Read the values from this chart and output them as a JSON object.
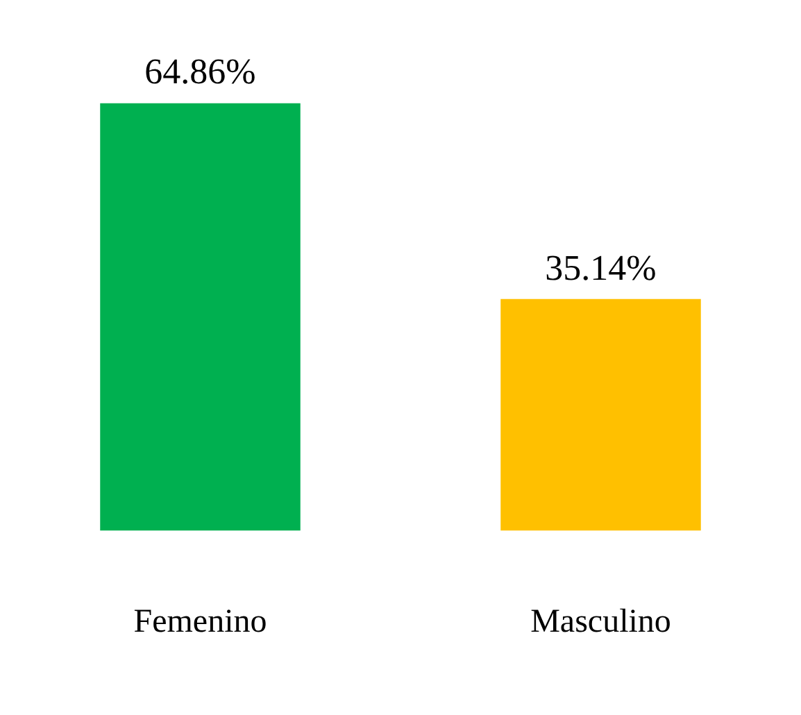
{
  "chart_data": {
    "type": "bar",
    "categories": [
      "Femenino",
      "Masculino"
    ],
    "values": [
      64.86,
      35.14
    ],
    "value_labels": [
      "64.86%",
      "35.14%"
    ],
    "colors": [
      "#00b050",
      "#ffc000"
    ],
    "grid": false,
    "legend": false
  }
}
